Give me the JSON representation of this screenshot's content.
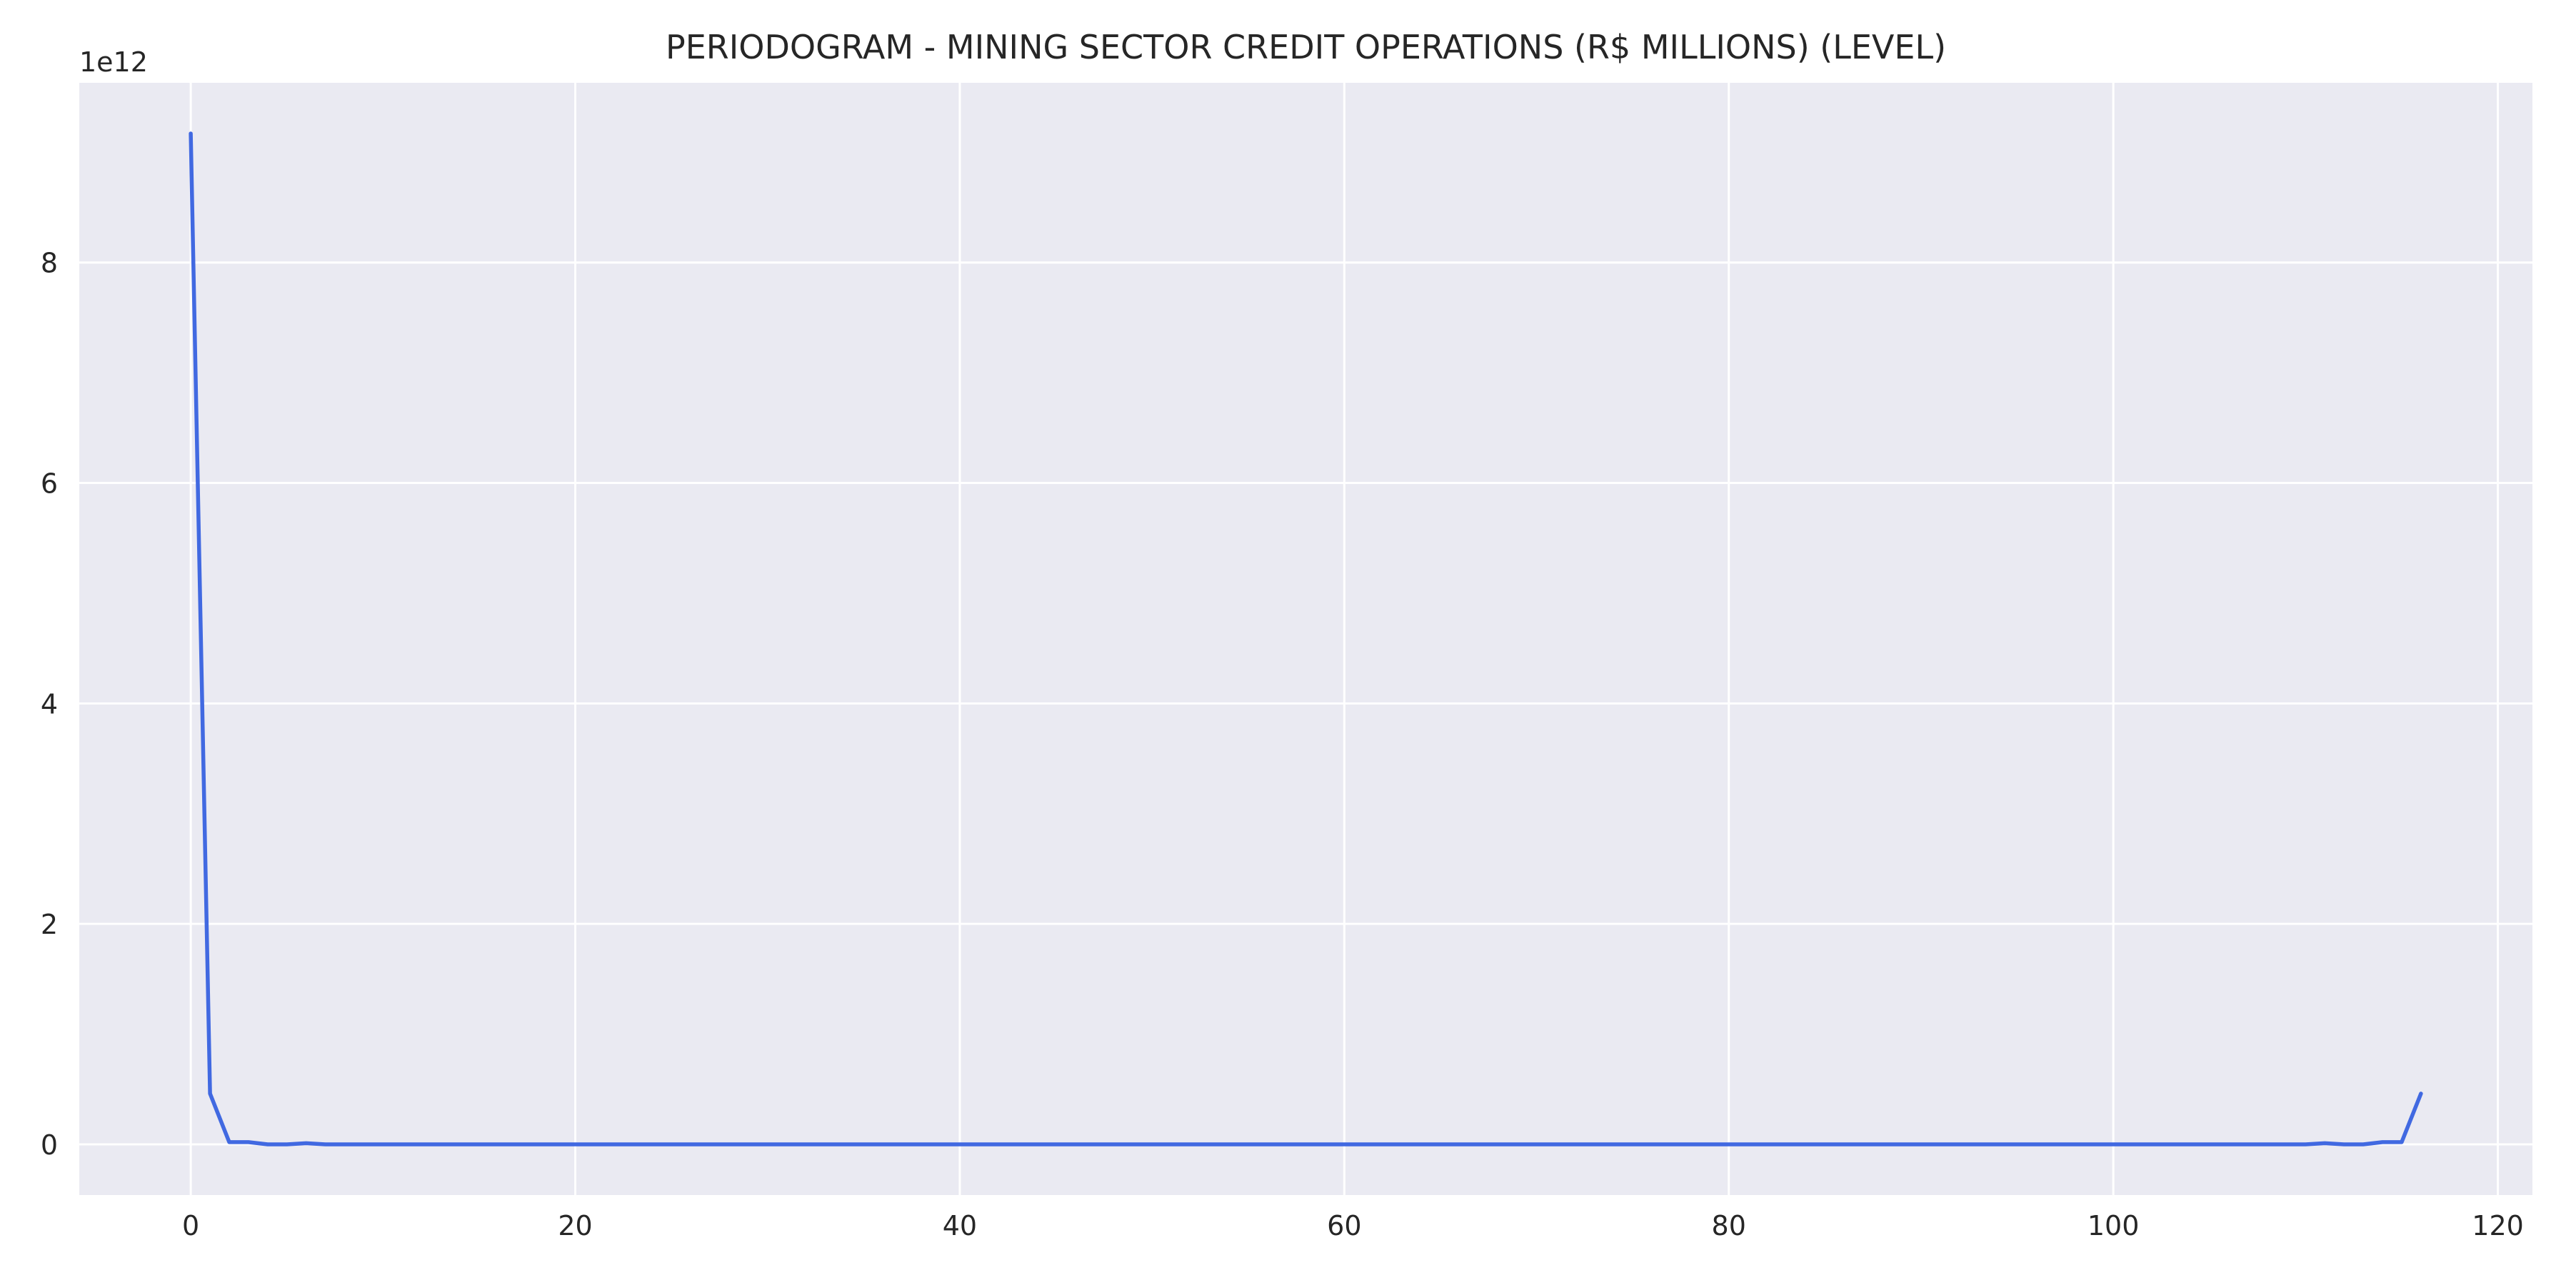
{
  "chart_data": {
    "type": "line",
    "title": "PERIODOGRAM - MINING SECTOR CREDIT OPERATIONS (R$ MILLIONS) (LEVEL)",
    "xlabel": "",
    "ylabel": "",
    "y_offset_label": "1e12",
    "xlim": [
      -5.8,
      121.8
    ],
    "ylim": [
      -0.46,
      9.63
    ],
    "x_ticks": [
      0,
      20,
      40,
      60,
      80,
      100,
      120
    ],
    "x_tick_labels": [
      "0",
      "20",
      "40",
      "60",
      "80",
      "100",
      "120"
    ],
    "y_ticks": [
      0,
      2,
      4,
      6,
      8
    ],
    "y_tick_labels": [
      "0",
      "2",
      "4",
      "6",
      "8"
    ],
    "grid": true,
    "colors": {
      "background": "#eaeaf2",
      "grid": "#ffffff",
      "line": "#4169e1",
      "text": "#262626"
    },
    "series": [
      {
        "name": "periodogram",
        "x": [
          0,
          1,
          2,
          3,
          4,
          5,
          6,
          7,
          8,
          9,
          10,
          11,
          12,
          13,
          14,
          15,
          16,
          17,
          18,
          19,
          20,
          21,
          22,
          23,
          24,
          25,
          26,
          27,
          28,
          29,
          30,
          31,
          32,
          33,
          34,
          35,
          36,
          37,
          38,
          39,
          40,
          41,
          42,
          43,
          44,
          45,
          46,
          47,
          48,
          49,
          50,
          51,
          52,
          53,
          54,
          55,
          56,
          57,
          58,
          59,
          60,
          61,
          62,
          63,
          64,
          65,
          66,
          67,
          68,
          69,
          70,
          71,
          72,
          73,
          74,
          75,
          76,
          77,
          78,
          79,
          80,
          81,
          82,
          83,
          84,
          85,
          86,
          87,
          88,
          89,
          90,
          91,
          92,
          93,
          94,
          95,
          96,
          97,
          98,
          99,
          100,
          101,
          102,
          103,
          104,
          105,
          106,
          107,
          108,
          109,
          110,
          111,
          112,
          113,
          114,
          115,
          116
        ],
        "values": [
          9.17,
          0.46,
          0.02,
          0.02,
          0.0,
          0.0,
          0.01,
          0.0,
          0.0,
          0.0,
          0.0,
          0.0,
          0.0,
          0.0,
          0.0,
          0.0,
          0.0,
          0.0,
          0.0,
          0.0,
          0.0,
          0.0,
          0.0,
          0.0,
          0.0,
          0.0,
          0.0,
          0.0,
          0.0,
          0.0,
          0.0,
          0.0,
          0.0,
          0.0,
          0.0,
          0.0,
          0.0,
          0.0,
          0.0,
          0.0,
          0.0,
          0.0,
          0.0,
          0.0,
          0.0,
          0.0,
          0.0,
          0.0,
          0.0,
          0.0,
          0.0,
          0.0,
          0.0,
          0.0,
          0.0,
          0.0,
          0.0,
          0.0,
          0.0,
          0.0,
          0.0,
          0.0,
          0.0,
          0.0,
          0.0,
          0.0,
          0.0,
          0.0,
          0.0,
          0.0,
          0.0,
          0.0,
          0.0,
          0.0,
          0.0,
          0.0,
          0.0,
          0.0,
          0.0,
          0.0,
          0.0,
          0.0,
          0.0,
          0.0,
          0.0,
          0.0,
          0.0,
          0.0,
          0.0,
          0.0,
          0.0,
          0.0,
          0.0,
          0.0,
          0.0,
          0.0,
          0.0,
          0.0,
          0.0,
          0.0,
          0.0,
          0.0,
          0.0,
          0.0,
          0.0,
          0.0,
          0.0,
          0.0,
          0.0,
          0.0,
          0.0,
          0.01,
          0.0,
          0.0,
          0.02,
          0.02,
          0.46
        ]
      }
    ]
  }
}
